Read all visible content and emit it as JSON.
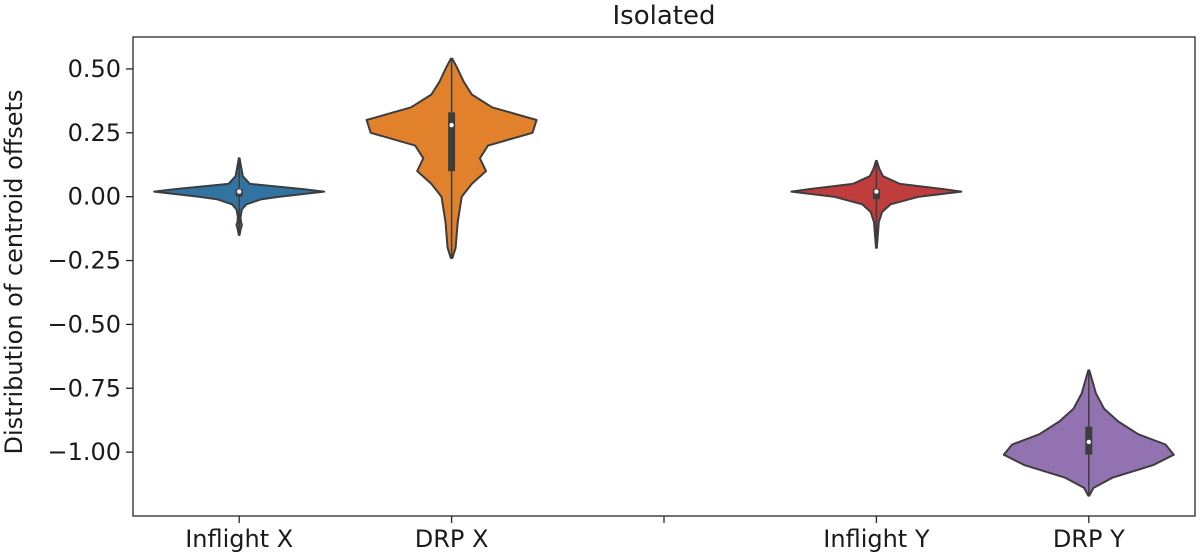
{
  "chart_data": {
    "type": "violin",
    "title": "Isolated",
    "xlabel": "",
    "ylabel": "Distribution of centroid offsets",
    "ylim": [
      -1.25,
      0.625
    ],
    "yticks": [
      0.5,
      0.25,
      0.0,
      -0.25,
      -0.5,
      -0.75,
      -1.0
    ],
    "ytick_labels": [
      "0.50",
      "0.25",
      "0.00",
      "−0.25",
      "−0.50",
      "−0.75",
      "−1.00"
    ],
    "categories": [
      "Inflight X",
      "DRP X",
      "",
      "Inflight Y",
      "DRP Y"
    ],
    "grid": false,
    "series": [
      {
        "name": "Inflight X",
        "color": "#3274a1",
        "min": -0.15,
        "max": 0.15,
        "q1": 0.0,
        "median": 0.02,
        "q3": 0.03,
        "profile": [
          [
            -0.15,
            0.004
          ],
          [
            -0.13,
            0.015
          ],
          [
            -0.11,
            0.03
          ],
          [
            -0.1,
            0.02
          ],
          [
            -0.08,
            0.015
          ],
          [
            -0.05,
            0.03
          ],
          [
            -0.03,
            0.08
          ],
          [
            -0.01,
            0.25
          ],
          [
            0.0,
            0.45
          ],
          [
            0.02,
            0.95
          ],
          [
            0.03,
            0.7
          ],
          [
            0.05,
            0.12
          ],
          [
            0.08,
            0.04
          ],
          [
            0.11,
            0.025
          ],
          [
            0.13,
            0.015
          ],
          [
            0.15,
            0.004
          ]
        ]
      },
      {
        "name": "DRP X",
        "color": "#e1812c",
        "min": -0.24,
        "max": 0.54,
        "q1": 0.1,
        "median": 0.28,
        "q3": 0.33,
        "profile": [
          [
            -0.24,
            0.004
          ],
          [
            -0.2,
            0.02
          ],
          [
            -0.1,
            0.03
          ],
          [
            0.0,
            0.05
          ],
          [
            0.05,
            0.1
          ],
          [
            0.1,
            0.17
          ],
          [
            0.15,
            0.14
          ],
          [
            0.2,
            0.18
          ],
          [
            0.25,
            0.4
          ],
          [
            0.3,
            0.42
          ],
          [
            0.35,
            0.2
          ],
          [
            0.4,
            0.1
          ],
          [
            0.45,
            0.06
          ],
          [
            0.5,
            0.03
          ],
          [
            0.54,
            0.004
          ]
        ]
      },
      {
        "name": "Inflight Y",
        "color": "#c03d3e",
        "min": -0.2,
        "max": 0.14,
        "q1": -0.01,
        "median": 0.02,
        "q3": 0.03,
        "profile": [
          [
            -0.2,
            0.004
          ],
          [
            -0.15,
            0.015
          ],
          [
            -0.1,
            0.025
          ],
          [
            -0.06,
            0.06
          ],
          [
            -0.03,
            0.15
          ],
          [
            0.0,
            0.45
          ],
          [
            0.02,
            0.9
          ],
          [
            0.03,
            0.7
          ],
          [
            0.05,
            0.25
          ],
          [
            0.08,
            0.07
          ],
          [
            0.11,
            0.03
          ],
          [
            0.14,
            0.004
          ]
        ]
      },
      {
        "name": "DRP Y",
        "color": "#9372b2",
        "min": -1.17,
        "max": -0.68,
        "q1": -1.01,
        "median": -0.96,
        "q3": -0.9,
        "profile": [
          [
            -1.17,
            0.004
          ],
          [
            -1.14,
            0.04
          ],
          [
            -1.1,
            0.2
          ],
          [
            -1.05,
            0.55
          ],
          [
            -1.01,
            0.72
          ],
          [
            -0.97,
            0.65
          ],
          [
            -0.93,
            0.42
          ],
          [
            -0.88,
            0.25
          ],
          [
            -0.83,
            0.13
          ],
          [
            -0.77,
            0.06
          ],
          [
            -0.72,
            0.03
          ],
          [
            -0.68,
            0.004
          ]
        ]
      }
    ]
  }
}
